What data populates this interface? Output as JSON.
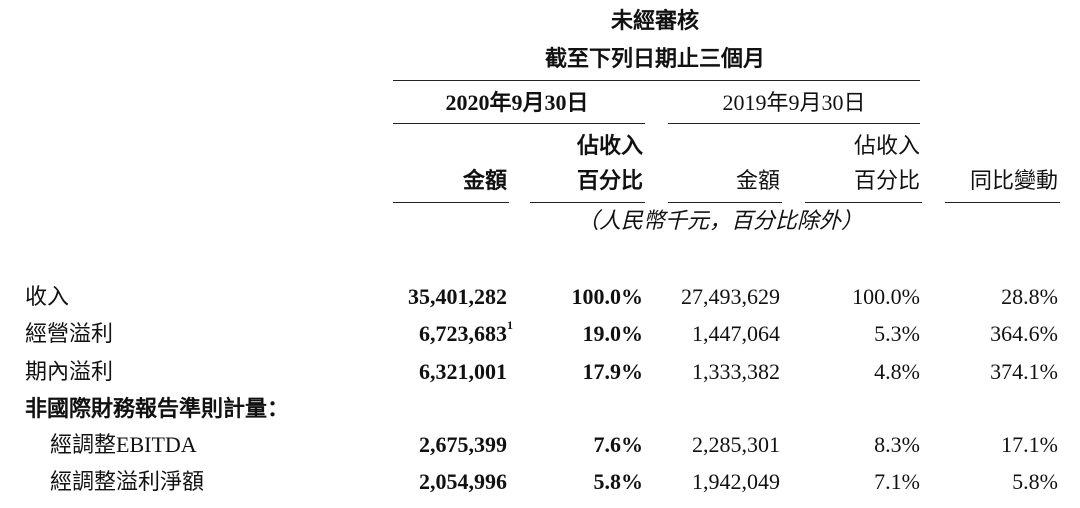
{
  "header": {
    "title": "未經審核",
    "subtitle": "截至下列日期止三個月",
    "period_2020": "2020年9月30日",
    "period_2019": "2019年9月30日",
    "unit_note": "（人民幣千元，百分比除外）"
  },
  "table": {
    "columns": [
      [
        "金額"
      ],
      [
        "佔收入",
        "百分比"
      ],
      [
        "金額"
      ],
      [
        "佔收入",
        "百分比"
      ],
      [
        "同比變動"
      ]
    ],
    "rows": [
      {
        "label": "收入",
        "values": [
          "35,401,282",
          "100.0%",
          "27,493,629",
          "100.0%",
          "28.8%"
        ]
      },
      {
        "label": "經營溢利",
        "values": [
          "6,723,683",
          "19.0%",
          "1,447,064",
          "5.3%",
          "364.6%"
        ],
        "footnote": "1"
      },
      {
        "label": "期內溢利",
        "values": [
          "6,321,001",
          "17.9%",
          "1,333,382",
          "4.8%",
          "374.1%"
        ]
      },
      {
        "label": "非國際財務報告準則計量：",
        "values": []
      },
      {
        "label": "經調整EBITDA",
        "values": [
          "2,675,399",
          "7.6%",
          "2,285,301",
          "8.3%",
          "17.1%"
        ]
      },
      {
        "label": "經調整溢利淨額",
        "values": [
          "2,054,996",
          "5.8%",
          "1,942,049",
          "7.1%",
          "5.8%"
        ]
      }
    ]
  }
}
